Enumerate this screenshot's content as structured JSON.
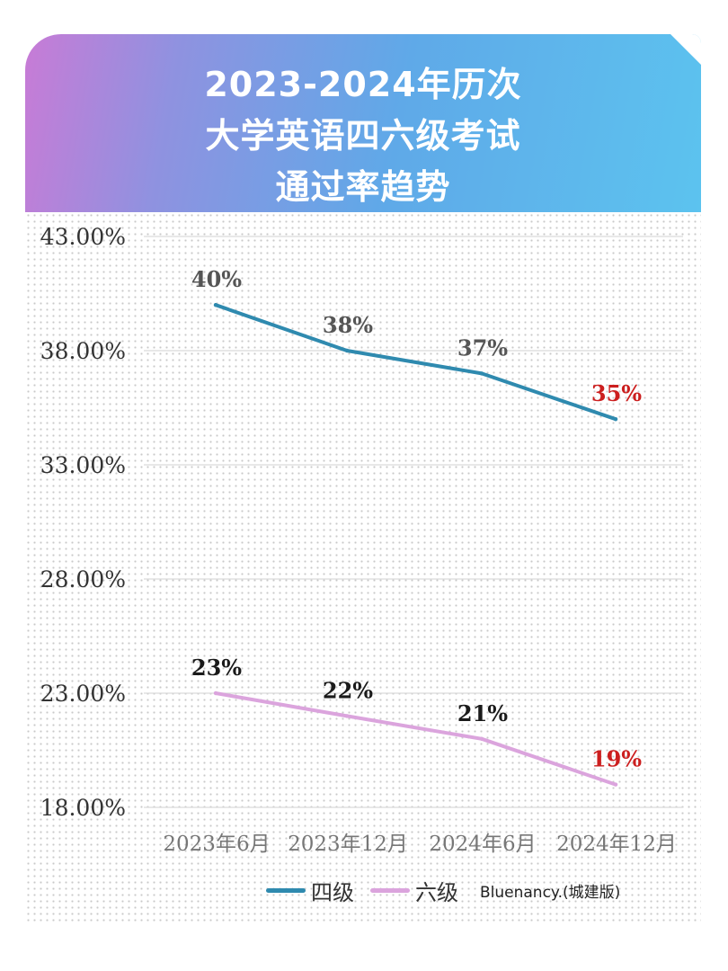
{
  "header": {
    "title": "2023-2024年历次\n大学英语四六级考试\n通过率趋势"
  },
  "credit": "Bluenancy.(城建版)",
  "chart_data": {
    "type": "line",
    "categories": [
      "2023年6月",
      "2023年12月",
      "2024年6月",
      "2024年12月"
    ],
    "yticks": [
      "43.00%",
      "38.00%",
      "33.00%",
      "28.00%",
      "23.00%",
      "18.00%"
    ],
    "ylim": [
      18,
      43
    ],
    "grid": true,
    "legend_position": "bottom",
    "series": [
      {
        "name": "四级",
        "color": "#2f8aaf",
        "values": [
          40,
          38,
          37,
          35
        ],
        "labels": [
          "40%",
          "38%",
          "37%",
          "35%"
        ],
        "label_colors": [
          "#555555",
          "#555555",
          "#555555",
          "#cc1f1f"
        ]
      },
      {
        "name": "六级",
        "color": "#dba4dd",
        "values": [
          23,
          22,
          21,
          19
        ],
        "labels": [
          "23%",
          "22%",
          "21%",
          "19%"
        ],
        "label_colors": [
          "#1a1a1a",
          "#1a1a1a",
          "#1a1a1a",
          "#cc1f1f"
        ]
      }
    ]
  }
}
